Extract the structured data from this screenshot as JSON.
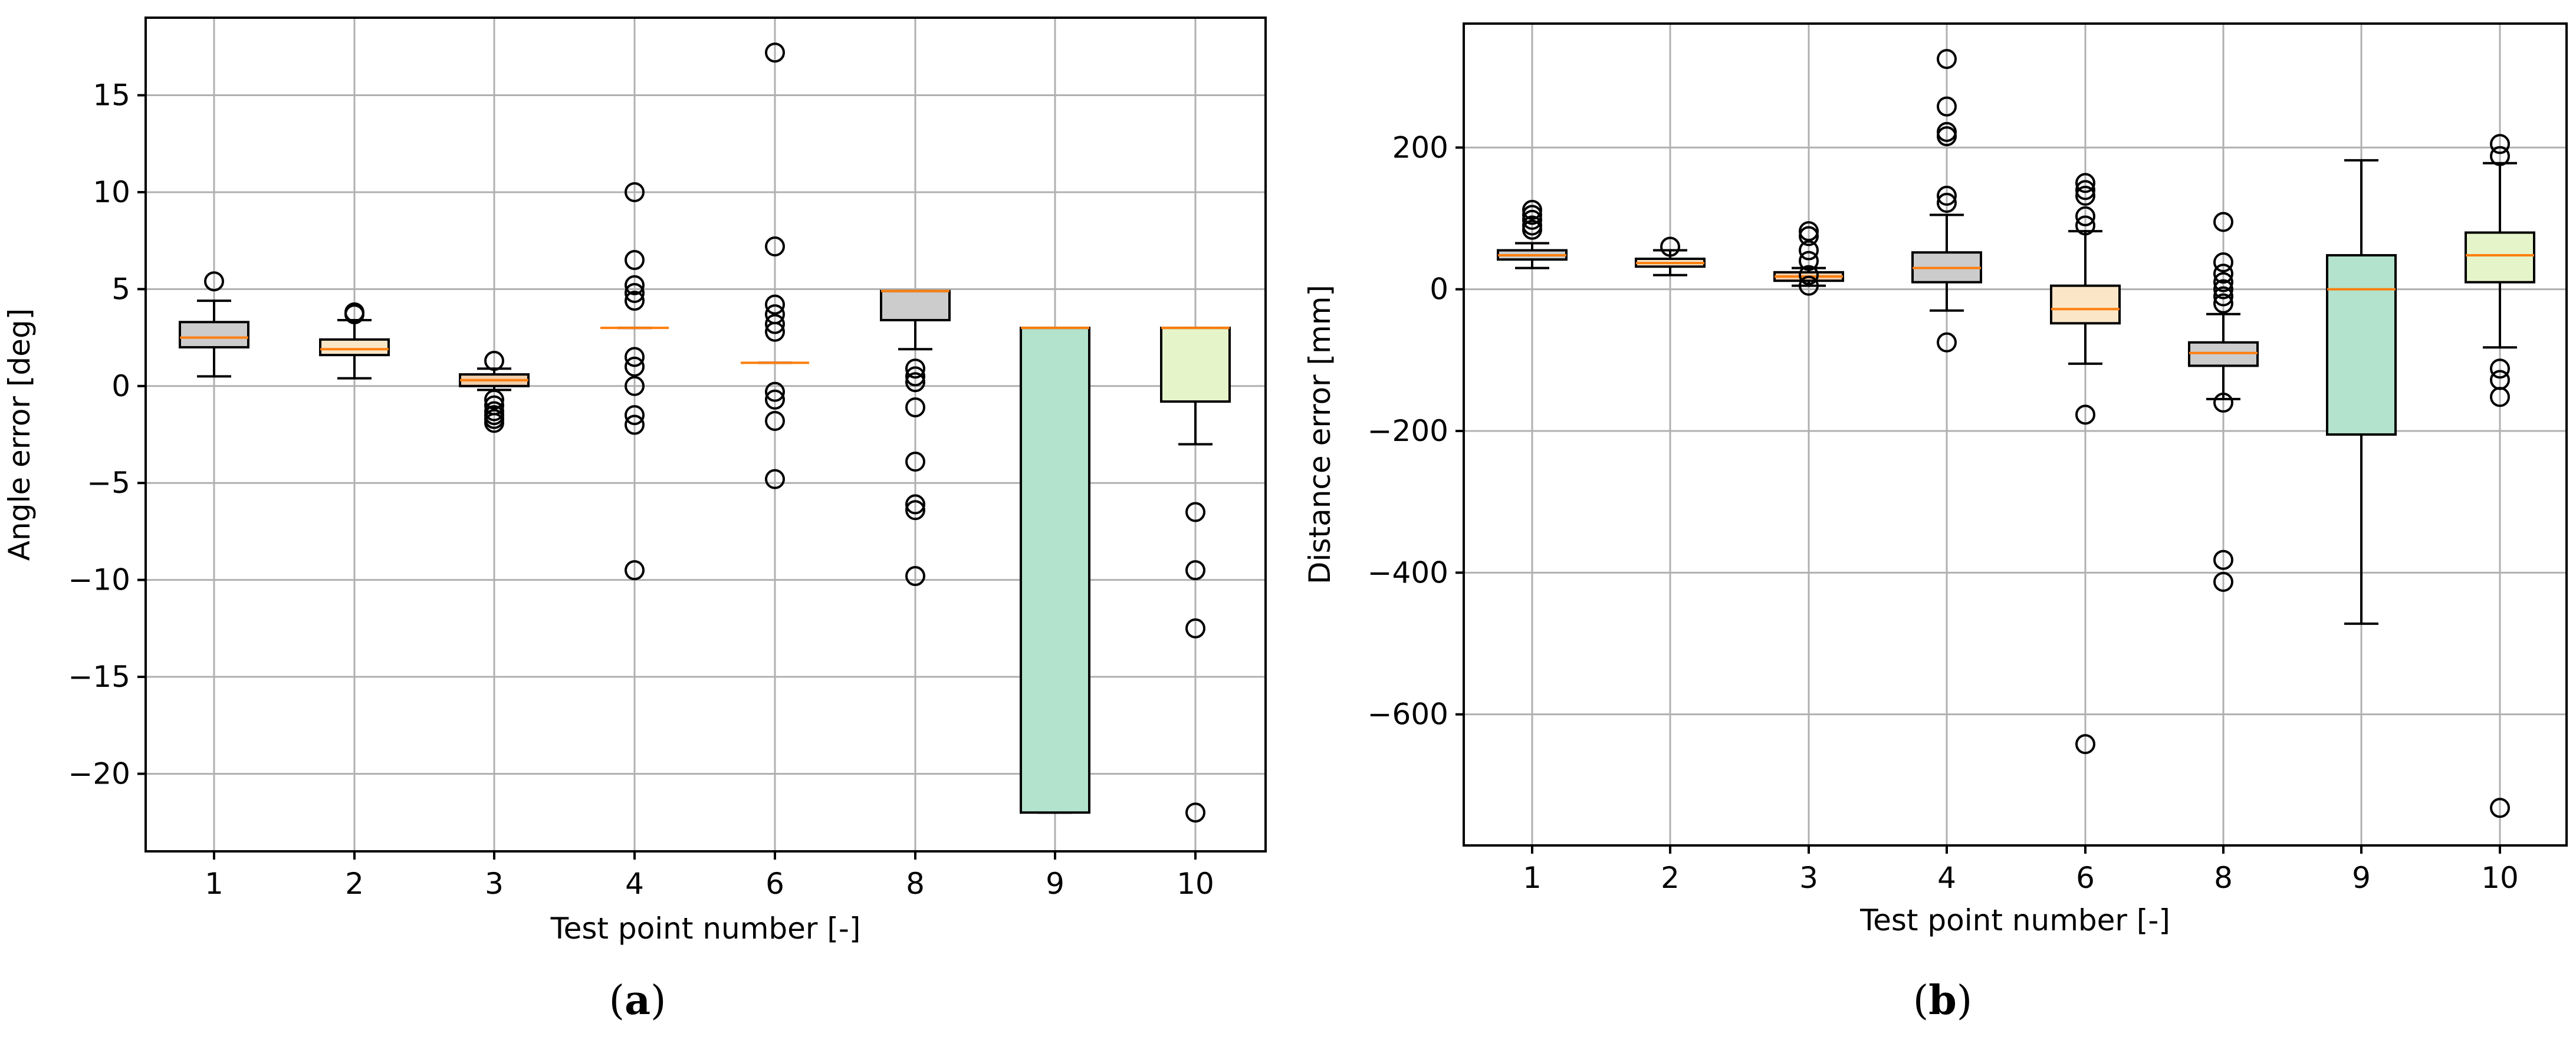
{
  "colors": {
    "box_fills": [
      "#cccccc",
      "#fbe6c8",
      "#f1ceab",
      "#cccccc",
      "#fbe6c8",
      "#cccccc",
      "#b3e2cd",
      "#e6f5c9"
    ],
    "median": "#ff7f0e",
    "grid": "#b0b0b0",
    "edge": "#000000"
  },
  "chart_data": [
    {
      "type": "box",
      "panel_label": {
        "open": "(",
        "letter": "a",
        "close": ")"
      },
      "xlabel": "Test point number [-]",
      "ylabel": "Angle error [deg]",
      "categories": [
        "1",
        "2",
        "3",
        "4",
        "6",
        "8",
        "9",
        "10"
      ],
      "ylim": [
        -24,
        19
      ],
      "yticks": [
        15,
        10,
        5,
        0,
        -5,
        -10,
        -15,
        -20
      ],
      "ytick_labels": [
        "15",
        "10",
        "5",
        "0",
        "−5",
        "−10",
        "−15",
        "−20"
      ],
      "grid": true,
      "boxes": [
        {
          "q1": 2.0,
          "median": 2.5,
          "q3": 3.3,
          "wlo": 0.5,
          "whi": 4.4,
          "fliers": [
            5.4
          ]
        },
        {
          "q1": 1.6,
          "median": 1.9,
          "q3": 2.4,
          "wlo": 0.4,
          "whi": 3.4,
          "fliers": [
            3.7,
            3.8
          ]
        },
        {
          "q1": 0.0,
          "median": 0.3,
          "q3": 0.6,
          "wlo": -0.2,
          "whi": 0.9,
          "fliers": [
            1.3,
            -0.7,
            -1.0,
            -1.3,
            -1.5,
            -1.7,
            -1.9
          ]
        },
        {
          "q1": 3.0,
          "median": 3.0,
          "q3": 3.0,
          "wlo": 3.0,
          "whi": 3.0,
          "fliers": [
            10.0,
            6.5,
            5.2,
            4.8,
            4.4,
            1.5,
            1.0,
            0.0,
            -1.5,
            -2.0,
            -9.5
          ]
        },
        {
          "q1": 1.2,
          "median": 1.2,
          "q3": 1.2,
          "wlo": 1.2,
          "whi": 1.2,
          "fliers": [
            17.2,
            7.2,
            4.2,
            3.7,
            3.2,
            2.8,
            -0.3,
            -0.7,
            -1.8,
            -4.8
          ]
        },
        {
          "q1": 3.4,
          "median": 4.9,
          "q3": 4.9,
          "wlo": 1.9,
          "whi": 4.9,
          "fliers": [
            0.9,
            0.5,
            0.2,
            -1.1,
            -3.9,
            -6.1,
            -6.4,
            -9.8
          ]
        },
        {
          "q1": -22.0,
          "median": 3.0,
          "q3": 3.0,
          "wlo": -22.0,
          "whi": 3.0,
          "fliers": []
        },
        {
          "q1": -0.8,
          "median": 3.0,
          "q3": 3.0,
          "wlo": -3.0,
          "whi": 3.0,
          "fliers": [
            -6.5,
            -9.5,
            -12.5,
            -22.0
          ]
        }
      ]
    },
    {
      "type": "box",
      "panel_label": {
        "open": "(",
        "letter": "b",
        "close": ")"
      },
      "xlabel": "Test point number [-]",
      "ylabel": "Distance error [mm]",
      "categories": [
        "1",
        "2",
        "3",
        "4",
        "6",
        "8",
        "9",
        "10"
      ],
      "ylim": [
        -785,
        375
      ],
      "yticks": [
        200,
        0,
        -200,
        -400,
        -600
      ],
      "ytick_labels": [
        "200",
        "0",
        "−200",
        "−400",
        "−600"
      ],
      "grid": true,
      "boxes": [
        {
          "q1": 42,
          "median": 48,
          "q3": 55,
          "wlo": 30,
          "whi": 65,
          "fliers": [
            112,
            105,
            98,
            90,
            84
          ]
        },
        {
          "q1": 32,
          "median": 37,
          "q3": 43,
          "wlo": 20,
          "whi": 55,
          "fliers": [
            60
          ]
        },
        {
          "q1": 12,
          "median": 18,
          "q3": 24,
          "wlo": 5,
          "whi": 30,
          "fliers": [
            82,
            75,
            55,
            40,
            20,
            5
          ]
        },
        {
          "q1": 10,
          "median": 30,
          "q3": 52,
          "wlo": -30,
          "whi": 105,
          "fliers": [
            325,
            258,
            222,
            216,
            132,
            122,
            -75
          ]
        },
        {
          "q1": -48,
          "median": -28,
          "q3": 5,
          "wlo": -105,
          "whi": 82,
          "fliers": [
            150,
            140,
            132,
            103,
            90,
            -177,
            -642
          ]
        },
        {
          "q1": -108,
          "median": -90,
          "q3": -75,
          "wlo": -155,
          "whi": -35,
          "fliers": [
            95,
            38,
            22,
            10,
            0,
            -10,
            -20,
            -160,
            -382,
            -413
          ]
        },
        {
          "q1": -205,
          "median": 0,
          "q3": 48,
          "wlo": -472,
          "whi": 182,
          "fliers": []
        },
        {
          "q1": 10,
          "median": 48,
          "q3": 80,
          "wlo": -82,
          "whi": 178,
          "fliers": [
            205,
            188,
            -112,
            -128,
            -152,
            -732
          ]
        }
      ]
    }
  ]
}
